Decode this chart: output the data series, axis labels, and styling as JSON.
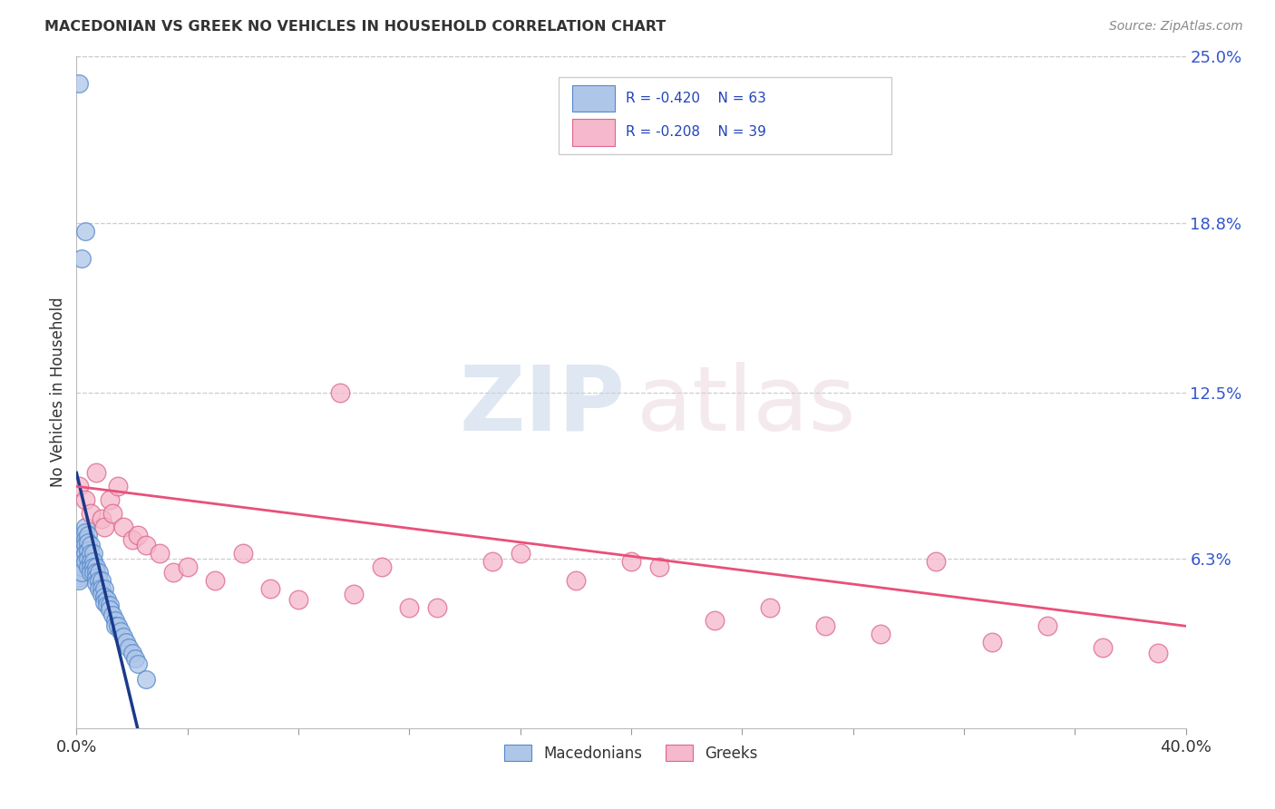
{
  "title": "MACEDONIAN VS GREEK NO VEHICLES IN HOUSEHOLD CORRELATION CHART",
  "source": "Source: ZipAtlas.com",
  "ylabel": "No Vehicles in Household",
  "xlim": [
    0.0,
    0.4
  ],
  "ylim": [
    0.0,
    0.25
  ],
  "xtick_positions": [
    0.0,
    0.04,
    0.08,
    0.12,
    0.16,
    0.2,
    0.24,
    0.28,
    0.32,
    0.36,
    0.4
  ],
  "xticklabels_show": {
    "0.0": "0.0%",
    "0.40": "40.0%"
  },
  "yticks_right": [
    0.063,
    0.125,
    0.188,
    0.25
  ],
  "ytick_labels_right": [
    "6.3%",
    "12.5%",
    "18.8%",
    "25.0%"
  ],
  "grid_color": "#cccccc",
  "bg_color": "#ffffff",
  "macedonian_color": "#aec6e8",
  "macedonian_edge": "#5588cc",
  "greek_color": "#f5b8cc",
  "greek_edge": "#dd6688",
  "macedonian_line_color": "#1a3a8a",
  "greek_line_color": "#e8507a",
  "legend_mac_R": "R = -0.420",
  "legend_mac_N": "N = 63",
  "legend_grk_R": "R = -0.208",
  "legend_grk_N": "N = 39",
  "legend_label_mac": "Macedonians",
  "legend_label_grk": "Greeks",
  "mac_x": [
    0.001,
    0.001,
    0.001,
    0.001,
    0.001,
    0.002,
    0.002,
    0.002,
    0.002,
    0.002,
    0.002,
    0.003,
    0.003,
    0.003,
    0.003,
    0.003,
    0.003,
    0.004,
    0.004,
    0.004,
    0.004,
    0.004,
    0.005,
    0.005,
    0.005,
    0.005,
    0.005,
    0.006,
    0.006,
    0.006,
    0.006,
    0.007,
    0.007,
    0.007,
    0.007,
    0.008,
    0.008,
    0.008,
    0.009,
    0.009,
    0.009,
    0.01,
    0.01,
    0.01,
    0.011,
    0.011,
    0.012,
    0.012,
    0.013,
    0.014,
    0.014,
    0.015,
    0.016,
    0.017,
    0.018,
    0.019,
    0.02,
    0.021,
    0.022,
    0.025,
    0.001,
    0.002,
    0.003
  ],
  "mac_y": [
    0.06,
    0.058,
    0.057,
    0.056,
    0.055,
    0.07,
    0.068,
    0.065,
    0.063,
    0.06,
    0.058,
    0.075,
    0.073,
    0.07,
    0.068,
    0.065,
    0.062,
    0.072,
    0.069,
    0.066,
    0.063,
    0.06,
    0.068,
    0.065,
    0.062,
    0.06,
    0.058,
    0.065,
    0.062,
    0.06,
    0.058,
    0.06,
    0.058,
    0.056,
    0.054,
    0.058,
    0.055,
    0.052,
    0.055,
    0.052,
    0.05,
    0.052,
    0.049,
    0.047,
    0.048,
    0.046,
    0.046,
    0.044,
    0.042,
    0.04,
    0.038,
    0.038,
    0.036,
    0.034,
    0.032,
    0.03,
    0.028,
    0.026,
    0.024,
    0.018,
    0.24,
    0.175,
    0.185
  ],
  "grk_x": [
    0.001,
    0.003,
    0.005,
    0.007,
    0.009,
    0.01,
    0.012,
    0.013,
    0.015,
    0.017,
    0.02,
    0.022,
    0.025,
    0.03,
    0.035,
    0.04,
    0.05,
    0.06,
    0.07,
    0.08,
    0.095,
    0.1,
    0.11,
    0.12,
    0.13,
    0.15,
    0.16,
    0.18,
    0.2,
    0.21,
    0.23,
    0.25,
    0.27,
    0.29,
    0.31,
    0.33,
    0.35,
    0.37,
    0.39
  ],
  "grk_y": [
    0.09,
    0.085,
    0.08,
    0.095,
    0.078,
    0.075,
    0.085,
    0.08,
    0.09,
    0.075,
    0.07,
    0.072,
    0.068,
    0.065,
    0.058,
    0.06,
    0.055,
    0.065,
    0.052,
    0.048,
    0.125,
    0.05,
    0.06,
    0.045,
    0.045,
    0.062,
    0.065,
    0.055,
    0.062,
    0.06,
    0.04,
    0.045,
    0.038,
    0.035,
    0.062,
    0.032,
    0.038,
    0.03,
    0.028
  ],
  "mac_line": {
    "x0": 0.0,
    "y0": 0.095,
    "x1": 0.022,
    "y1": 0.0
  },
  "grk_line": {
    "x0": 0.0,
    "y0": 0.09,
    "x1": 0.4,
    "y1": 0.038
  }
}
